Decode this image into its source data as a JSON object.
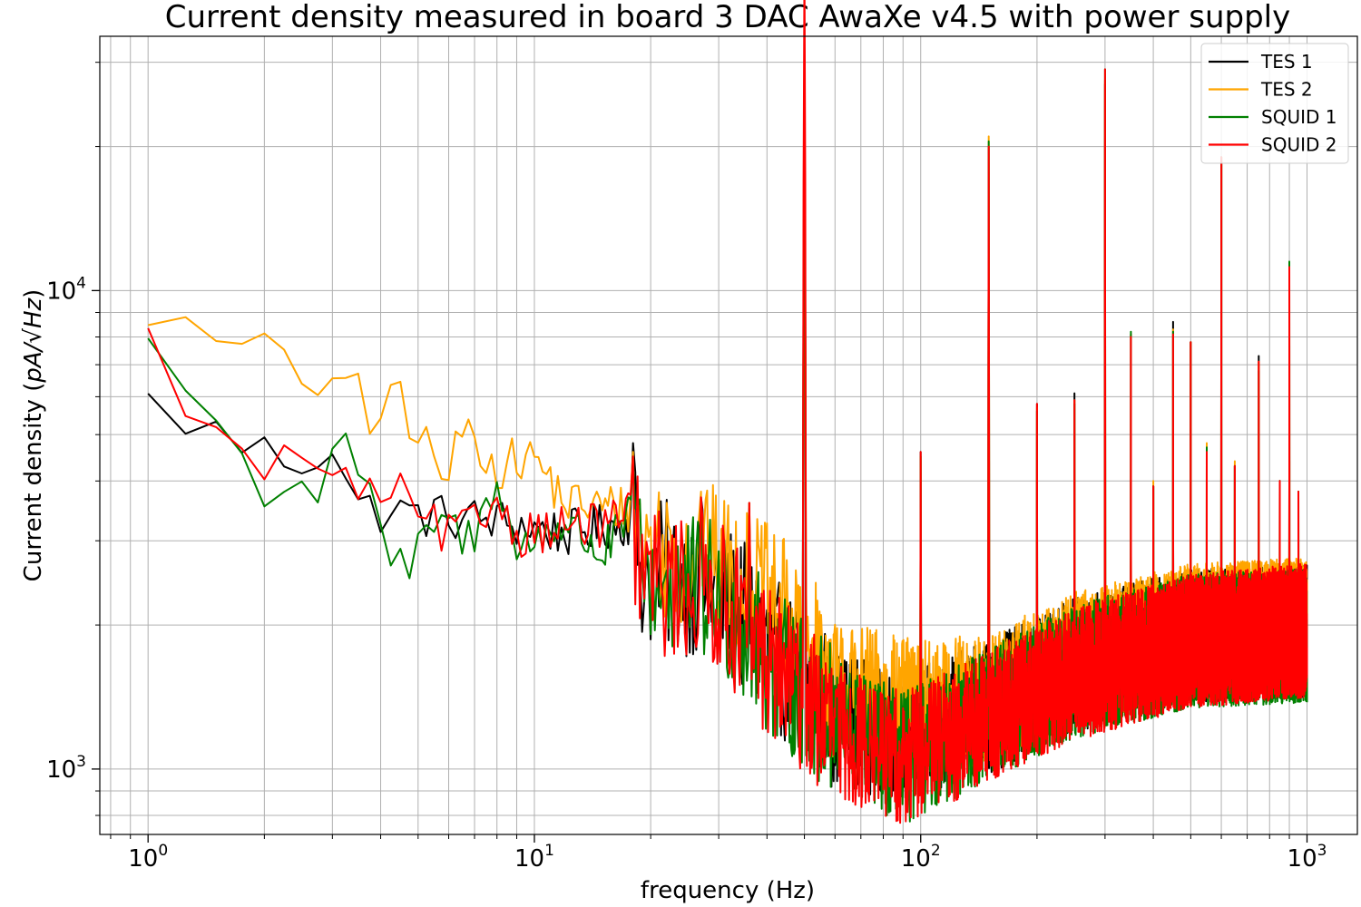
{
  "chart_data": {
    "type": "line",
    "title": "Current density measured in board 3 DAC AwaXe v4.5 with power supply",
    "xlabel": "frequency (Hz)",
    "ylabel_prefix": "Current density (",
    "ylabel_math": "pA/√Hz",
    "ylabel_suffix": ")",
    "x_scale": "log",
    "y_scale": "log",
    "xlim": [
      0.75,
      1350
    ],
    "ylim": [
      730,
      34000
    ],
    "grid": "on (major and minor)",
    "legend_position": "top-right",
    "x_ticks": [
      {
        "value": 1,
        "base": "10",
        "exp": "0"
      },
      {
        "value": 10,
        "base": "10",
        "exp": "1"
      },
      {
        "value": 100,
        "base": "10",
        "exp": "2"
      },
      {
        "value": 1000,
        "base": "10",
        "exp": "3"
      }
    ],
    "y_ticks": [
      {
        "value": 1000,
        "base": "10",
        "exp": "3"
      },
      {
        "value": 10000,
        "base": "10",
        "exp": "4"
      }
    ],
    "series": [
      {
        "name": "TES 1",
        "color": "#000000",
        "baseline": [
          [
            1,
            5800
          ],
          [
            1.3,
            5300
          ],
          [
            1.8,
            4700
          ],
          [
            2.5,
            4400
          ],
          [
            3,
            4800
          ],
          [
            3.5,
            3500
          ],
          [
            5,
            3400
          ],
          [
            8,
            3300
          ],
          [
            12,
            3100
          ],
          [
            18,
            3300
          ],
          [
            19,
            2600
          ],
          [
            30,
            2400
          ],
          [
            40,
            1800
          ],
          [
            60,
            1300
          ],
          [
            90,
            1150
          ],
          [
            150,
            1350
          ],
          [
            250,
            1650
          ],
          [
            500,
            1900
          ],
          [
            1000,
            1950
          ]
        ],
        "peaks": [
          [
            18,
            4800
          ],
          [
            27,
            3700
          ],
          [
            36,
            3600
          ],
          [
            50,
            27000
          ],
          [
            100,
            4600
          ],
          [
            150,
            20000
          ],
          [
            200,
            5800
          ],
          [
            250,
            6100
          ],
          [
            300,
            27000
          ],
          [
            350,
            8100
          ],
          [
            400,
            3900
          ],
          [
            450,
            8600
          ],
          [
            500,
            7800
          ],
          [
            550,
            4700
          ],
          [
            600,
            19000
          ],
          [
            650,
            4300
          ],
          [
            750,
            7300
          ],
          [
            850,
            4000
          ],
          [
            900,
            11000
          ],
          [
            950,
            3800
          ]
        ]
      },
      {
        "name": "TES 2",
        "color": "#ffa500",
        "baseline": [
          [
            1,
            9300
          ],
          [
            1.2,
            8500
          ],
          [
            1.4,
            7300
          ],
          [
            1.7,
            7800
          ],
          [
            2.2,
            7100
          ],
          [
            2.7,
            6300
          ],
          [
            3,
            6900
          ],
          [
            3.5,
            6000
          ],
          [
            3.8,
            4400
          ],
          [
            4.2,
            6700
          ],
          [
            5,
            5000
          ],
          [
            6,
            4000
          ],
          [
            6.5,
            5200
          ],
          [
            8,
            4300
          ],
          [
            10,
            4500
          ],
          [
            12,
            3600
          ],
          [
            18,
            3500
          ],
          [
            19,
            3000
          ],
          [
            30,
            2700
          ],
          [
            45,
            2100
          ],
          [
            60,
            1500
          ],
          [
            100,
            1350
          ],
          [
            150,
            1400
          ],
          [
            250,
            1700
          ],
          [
            500,
            1950
          ],
          [
            1000,
            2000
          ]
        ],
        "peaks": [
          [
            18,
            4600
          ],
          [
            27,
            3800
          ],
          [
            36,
            3600
          ],
          [
            50,
            26500
          ],
          [
            100,
            4500
          ],
          [
            150,
            21000
          ],
          [
            200,
            5700
          ],
          [
            250,
            5900
          ],
          [
            300,
            27500
          ],
          [
            350,
            8100
          ],
          [
            400,
            4000
          ],
          [
            450,
            8300
          ],
          [
            500,
            7800
          ],
          [
            550,
            4800
          ],
          [
            600,
            19000
          ],
          [
            650,
            4400
          ],
          [
            750,
            7100
          ],
          [
            850,
            4000
          ],
          [
            900,
            11000
          ],
          [
            950,
            3800
          ]
        ]
      },
      {
        "name": "SQUID 1",
        "color": "#008000",
        "baseline": [
          [
            1,
            8000
          ],
          [
            1.3,
            6000
          ],
          [
            1.7,
            4500
          ],
          [
            2,
            3900
          ],
          [
            2.5,
            4000
          ],
          [
            2.8,
            3700
          ],
          [
            3,
            4900
          ],
          [
            3.4,
            4700
          ],
          [
            4,
            3000
          ],
          [
            4.7,
            2500
          ],
          [
            5.5,
            3300
          ],
          [
            7,
            3000
          ],
          [
            8,
            4200
          ],
          [
            9,
            2800
          ],
          [
            10,
            3000
          ],
          [
            12,
            3300
          ],
          [
            15,
            2800
          ],
          [
            18,
            3400
          ],
          [
            19,
            2500
          ],
          [
            30,
            2300
          ],
          [
            40,
            1700
          ],
          [
            60,
            1250
          ],
          [
            90,
            1050
          ],
          [
            150,
            1300
          ],
          [
            250,
            1600
          ],
          [
            500,
            1850
          ],
          [
            1000,
            1900
          ]
        ],
        "peaks": [
          [
            18,
            4300
          ],
          [
            27,
            3600
          ],
          [
            36,
            3500
          ],
          [
            50,
            30000
          ],
          [
            100,
            4500
          ],
          [
            150,
            20500
          ],
          [
            200,
            5600
          ],
          [
            250,
            5800
          ],
          [
            300,
            29000
          ],
          [
            350,
            8200
          ],
          [
            400,
            3900
          ],
          [
            450,
            8200
          ],
          [
            500,
            7800
          ],
          [
            550,
            4700
          ],
          [
            600,
            19000
          ],
          [
            650,
            4300
          ],
          [
            750,
            6800
          ],
          [
            850,
            4000
          ],
          [
            900,
            11500
          ],
          [
            950,
            3800
          ]
        ]
      },
      {
        "name": "SQUID 2",
        "color": "#ff0000",
        "baseline": [
          [
            1,
            7700
          ],
          [
            1.3,
            5800
          ],
          [
            1.8,
            4200
          ],
          [
            2.2,
            4400
          ],
          [
            3,
            4300
          ],
          [
            3.6,
            3500
          ],
          [
            4.2,
            4000
          ],
          [
            5,
            3300
          ],
          [
            6,
            3100
          ],
          [
            7,
            3200
          ],
          [
            8,
            3700
          ],
          [
            9,
            3100
          ],
          [
            11,
            3200
          ],
          [
            14,
            3200
          ],
          [
            18,
            3400
          ],
          [
            19,
            2500
          ],
          [
            30,
            2300
          ],
          [
            40,
            1700
          ],
          [
            60,
            1200
          ],
          [
            90,
            1050
          ],
          [
            150,
            1280
          ],
          [
            250,
            1580
          ],
          [
            500,
            1850
          ],
          [
            1000,
            1950
          ]
        ],
        "peaks": [
          [
            18,
            4500
          ],
          [
            27,
            3700
          ],
          [
            36,
            3600
          ],
          [
            50,
            48000
          ],
          [
            100,
            4600
          ],
          [
            150,
            20000
          ],
          [
            200,
            5800
          ],
          [
            250,
            5900
          ],
          [
            300,
            29000
          ],
          [
            350,
            8000
          ],
          [
            400,
            3900
          ],
          [
            450,
            8100
          ],
          [
            500,
            7800
          ],
          [
            550,
            4600
          ],
          [
            600,
            19000
          ],
          [
            650,
            4300
          ],
          [
            750,
            7100
          ],
          [
            850,
            4000
          ],
          [
            900,
            11200
          ],
          [
            950,
            3800
          ]
        ]
      }
    ]
  }
}
